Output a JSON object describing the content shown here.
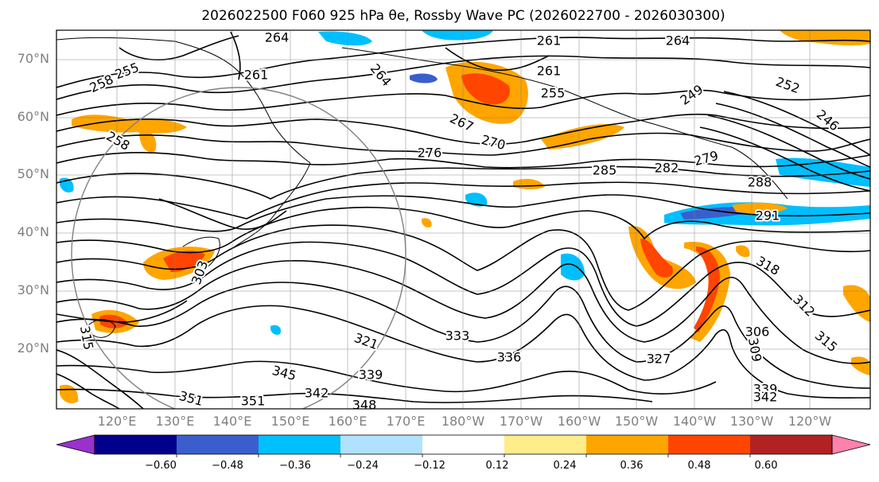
{
  "title": "2026022500 F060 925 hPa θe, Rossby Wave PC (2026022700 - 2026030300)",
  "latitude_labels": [
    "70°N",
    "60°N",
    "50°N",
    "40°N",
    "30°N",
    "20°N"
  ],
  "longitude_labels": [
    "120°E",
    "130°E",
    "140°E",
    "150°E",
    "160°E",
    "170°E",
    "180°W",
    "170°W",
    "160°W",
    "150°W",
    "140°W",
    "130°W",
    "120°W"
  ],
  "contour_labels": [
    {
      "text": "264"
    },
    {
      "text": "261"
    },
    {
      "text": "264"
    },
    {
      "text": "258"
    },
    {
      "text": "255"
    },
    {
      "text": "261"
    },
    {
      "text": "264"
    },
    {
      "text": "261"
    },
    {
      "text": "255"
    },
    {
      "text": "258"
    },
    {
      "text": "267"
    },
    {
      "text": "270"
    },
    {
      "text": "276"
    },
    {
      "text": "285"
    },
    {
      "text": "282"
    },
    {
      "text": "279"
    },
    {
      "text": "288"
    },
    {
      "text": "252"
    },
    {
      "text": "249"
    },
    {
      "text": "246"
    },
    {
      "text": "291"
    },
    {
      "text": "318"
    },
    {
      "text": "312"
    },
    {
      "text": "315"
    },
    {
      "text": "321"
    },
    {
      "text": "333"
    },
    {
      "text": "336"
    },
    {
      "text": "339"
    },
    {
      "text": "345"
    },
    {
      "text": "342"
    },
    {
      "text": "348"
    },
    {
      "text": "351"
    },
    {
      "text": "351"
    },
    {
      "text": "327"
    },
    {
      "text": "306"
    },
    {
      "text": "309"
    },
    {
      "text": "315"
    },
    {
      "text": "339"
    },
    {
      "text": "342"
    },
    {
      "text": "303"
    }
  ],
  "colorbar": {
    "ticks": [
      "−0.60",
      "−0.48",
      "−0.36",
      "−0.24",
      "−0.12",
      "0.12",
      "0.24",
      "0.36",
      "0.48",
      "0.60"
    ],
    "colors": [
      "#9932cc",
      "#00008b",
      "#3a5fcd",
      "#00bfff",
      "#b0e2ff",
      "#ffffff",
      "#ffec8b",
      "#ffa500",
      "#ff4500",
      "#b22222",
      "#ff82ab"
    ]
  }
}
